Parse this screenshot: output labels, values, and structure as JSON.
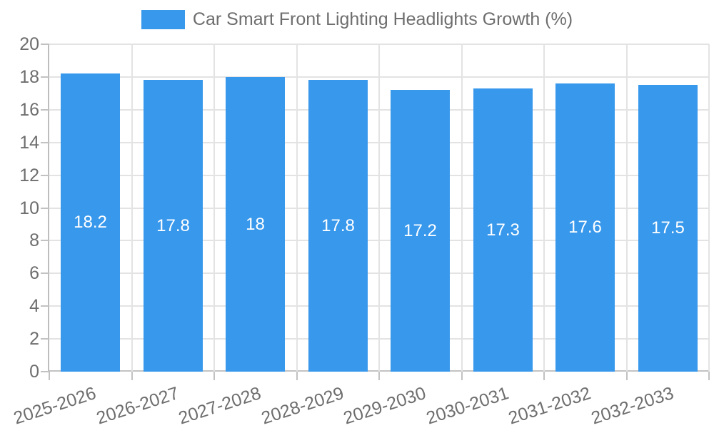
{
  "chart_data": {
    "type": "bar",
    "title": "Car Smart Front Lighting Headlights Growth (%)",
    "categories": [
      "2025-2026",
      "2026-2027",
      "2027-2028",
      "2028-2029",
      "2029-2030",
      "2030-2031",
      "2031-2032",
      "2032-2033"
    ],
    "values": [
      18.2,
      17.8,
      18,
      17.8,
      17.2,
      17.3,
      17.6,
      17.5
    ],
    "value_labels": [
      "18.2",
      "17.8",
      "18",
      "17.8",
      "17.2",
      "17.3",
      "17.6",
      "17.5"
    ],
    "xlabel": "",
    "ylabel": "",
    "ylim": [
      0,
      20
    ],
    "y_ticks": [
      0,
      2,
      4,
      6,
      8,
      10,
      12,
      14,
      16,
      18,
      20
    ],
    "grid": true,
    "legend_position": "top-center",
    "colors": {
      "bar": "#3898EC",
      "bar_label_text": "#ffffff",
      "axis_text": "#6e6e6e",
      "gridline": "#e3e3e3",
      "axis_line": "#c2c2c2"
    }
  }
}
